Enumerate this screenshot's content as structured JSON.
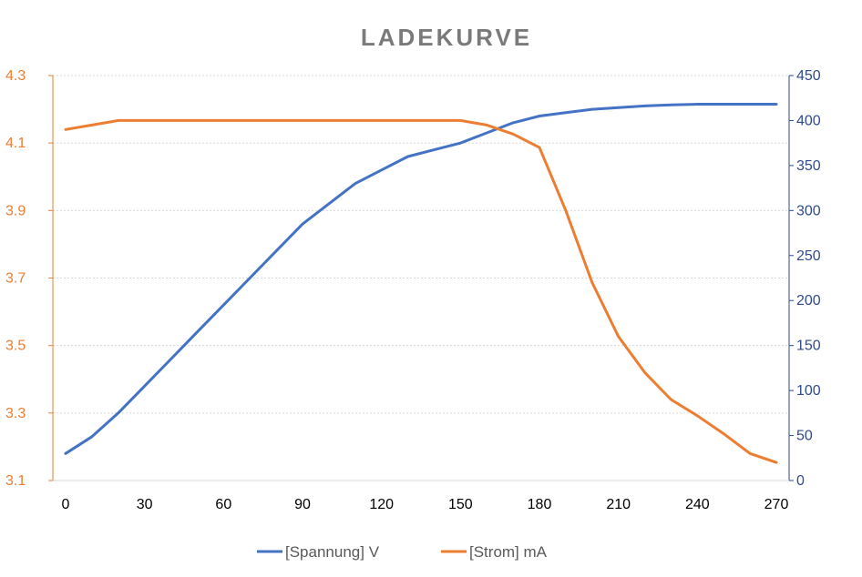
{
  "chart_data": {
    "type": "line",
    "title": "LADEKURVE",
    "x": [
      0,
      10,
      20,
      30,
      40,
      50,
      60,
      70,
      80,
      90,
      100,
      110,
      120,
      130,
      140,
      150,
      160,
      170,
      180,
      190,
      200,
      210,
      220,
      230,
      240,
      250,
      260,
      270
    ],
    "xticks": [
      "0",
      "30",
      "60",
      "90",
      "120",
      "150",
      "180",
      "210",
      "240",
      "270"
    ],
    "xlim": [
      0,
      270
    ],
    "y_left": {
      "ylim": [
        3.1,
        4.3
      ],
      "ticks": [
        "3.1",
        "3.3",
        "3.5",
        "3.7",
        "3.9",
        "4.1",
        "4.3"
      ],
      "color": "#ed7d31"
    },
    "y_right": {
      "ylim": [
        0,
        450
      ],
      "ticks": [
        "0",
        "50",
        "100",
        "150",
        "200",
        "250",
        "300",
        "350",
        "400",
        "450"
      ],
      "color": "#2f4b8a"
    },
    "grid": true,
    "legend_position": "bottom",
    "series": [
      {
        "name": "[Spannung] V",
        "axis": "left",
        "color": "#4472c4",
        "values": [
          3.18,
          3.23,
          3.3,
          3.38,
          3.46,
          3.54,
          3.62,
          3.7,
          3.78,
          3.86,
          3.92,
          3.98,
          4.02,
          4.06,
          4.08,
          4.1,
          4.13,
          4.16,
          4.18,
          4.19,
          4.2,
          4.205,
          4.21,
          4.213,
          4.215,
          4.215,
          4.215,
          4.215
        ]
      },
      {
        "name": "[Strom] mA",
        "axis": "right",
        "color": "#ed7d31",
        "values": [
          390,
          395,
          400,
          400,
          400,
          400,
          400,
          400,
          400,
          400,
          400,
          400,
          400,
          400,
          400,
          400,
          395,
          385,
          370,
          300,
          220,
          160,
          120,
          90,
          72,
          52,
          30,
          20
        ]
      }
    ]
  }
}
